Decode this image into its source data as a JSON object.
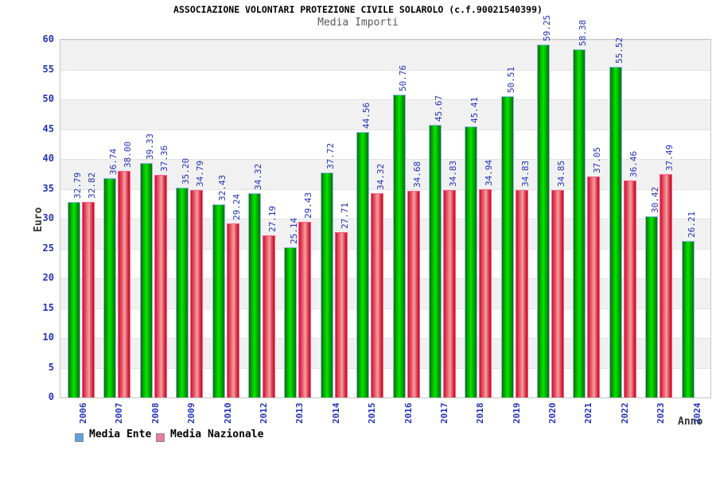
{
  "header": {
    "title": "ASSOCIAZIONE VOLONTARI PROTEZIONE CIVILE SOLAROLO (c.f.90021540399)",
    "subtitle": "Media Importi"
  },
  "axes": {
    "y_title": "Euro",
    "x_title": "Anno",
    "y_ticks": [
      0,
      5,
      10,
      15,
      20,
      25,
      30,
      35,
      40,
      45,
      50,
      55,
      60
    ],
    "y_min": 0,
    "y_max": 60
  },
  "legend": {
    "items": [
      {
        "label": "Media Ente",
        "swatch_color": "#5ca2e0"
      },
      {
        "label": "Media Nazionale",
        "swatch_color": "#ec7ca2"
      }
    ]
  },
  "colors": {
    "label_blue": "#2233bb",
    "band_gray": "#f1f1f1",
    "bar_green_mid": "#00e800",
    "bar_red_mid": "#f4a0a0"
  },
  "chart_data": {
    "type": "bar",
    "title": "ASSOCIAZIONE VOLONTARI PROTEZIONE CIVILE SOLAROLO (c.f.90021540399)",
    "subtitle": "Media Importi",
    "xlabel": "Anno",
    "ylabel": "Euro",
    "ylim": [
      0,
      60
    ],
    "grid": "horizontal-bands",
    "legend_position": "bottom-left",
    "categories": [
      "2006",
      "2007",
      "2008",
      "2009",
      "2010",
      "2012",
      "2013",
      "2014",
      "2015",
      "2016",
      "2017",
      "2018",
      "2019",
      "2020",
      "2021",
      "2022",
      "2023",
      "2024"
    ],
    "series": [
      {
        "name": "Media Ente",
        "values": [
          32.79,
          36.74,
          39.33,
          35.2,
          32.43,
          34.32,
          25.14,
          37.72,
          44.56,
          50.76,
          45.67,
          45.41,
          50.51,
          59.25,
          58.38,
          55.52,
          30.42,
          26.21
        ]
      },
      {
        "name": "Media Nazionale",
        "values": [
          32.82,
          38.0,
          37.36,
          34.79,
          29.24,
          27.19,
          29.43,
          27.71,
          34.32,
          34.68,
          34.83,
          34.94,
          34.83,
          34.85,
          37.05,
          36.46,
          37.49,
          null
        ]
      }
    ]
  }
}
